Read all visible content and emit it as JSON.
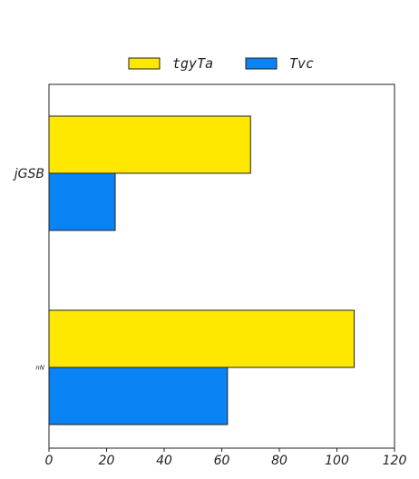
{
  "chart_data": {
    "type": "bar",
    "orientation": "horizontal",
    "categories": [
      "jGSB",
      "nN"
    ],
    "series": [
      {
        "name": "tgyTa",
        "color": "#ffe800",
        "values": [
          70,
          106
        ]
      },
      {
        "name": "Tvc",
        "color": "#0a84f5",
        "values": [
          23,
          62
        ]
      }
    ],
    "xlim": [
      0,
      120
    ],
    "xticks": [
      0,
      20,
      40,
      60,
      80,
      100,
      120
    ],
    "title": "",
    "xlabel": "",
    "ylabel": "",
    "grid": false,
    "legend_position": "top-center"
  }
}
